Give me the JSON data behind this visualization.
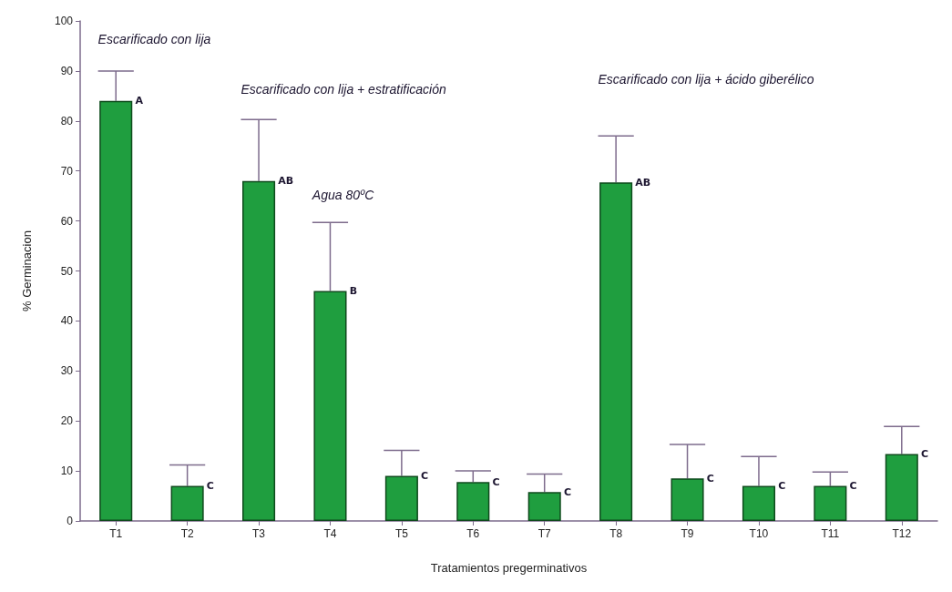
{
  "chart_data": {
    "type": "bar",
    "xlabel": "Tratamientos pregerminativos",
    "ylabel": "% Germinacion",
    "categories": [
      "T1",
      "T2",
      "T3",
      "T4",
      "T5",
      "T6",
      "T7",
      "T8",
      "T9",
      "T10",
      "T11",
      "T12"
    ],
    "values": [
      84,
      7,
      68,
      46,
      9,
      7.8,
      5.8,
      67.7,
      8.5,
      7,
      7,
      13.4
    ],
    "errors": [
      [
        84,
        90
      ],
      [
        7,
        11.2
      ],
      [
        68,
        80.3
      ],
      [
        46,
        59.7
      ],
      [
        9,
        14.1
      ],
      [
        7.8,
        10
      ],
      [
        5.8,
        9.4
      ],
      [
        67.7,
        77
      ],
      [
        8.5,
        15.3
      ],
      [
        7,
        12.9
      ],
      [
        7,
        9.8
      ],
      [
        13.4,
        18.9
      ]
    ],
    "color": "#1f9e3f",
    "ylim": [
      0,
      100
    ],
    "yticks": [
      0,
      10,
      20,
      30,
      40,
      50,
      60,
      70,
      80,
      90,
      100
    ],
    "grid": false,
    "annotations": [
      "Escarificado con lija",
      "Escarificado con lija + estratificación",
      "Agua 80ºC",
      "Escarificado con lija + ácido giberélico",
      {
        "text": "A",
        "x": "T1",
        "y": 84
      },
      {
        "text": "C",
        "x": "T2",
        "y": 7
      },
      {
        "text": "AB",
        "x": "T3",
        "y": 68
      },
      {
        "text": "B",
        "x": "T4",
        "y": 46
      },
      {
        "text": "C",
        "x": "T5",
        "y": 9
      },
      {
        "text": "C",
        "x": "T6",
        "y": 7.8
      },
      {
        "text": "C",
        "x": "T7",
        "y": 5.8
      },
      {
        "text": "AB",
        "x": "T8",
        "y": 67.7
      },
      {
        "text": "C",
        "x": "T9",
        "y": 8.5
      },
      {
        "text": "C",
        "x": "T10",
        "y": 7
      },
      {
        "text": "C",
        "x": "T11",
        "y": 7
      },
      {
        "text": "C",
        "x": "T12",
        "y": 13.4
      }
    ]
  }
}
